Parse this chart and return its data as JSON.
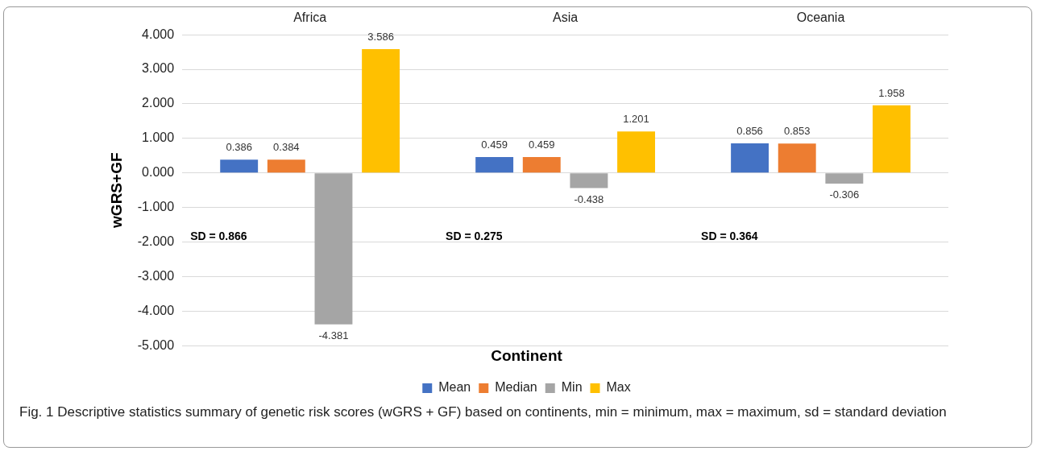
{
  "chart_data": {
    "type": "bar",
    "xlabel": "Continent",
    "ylabel": "wGRS+GF",
    "categories": [
      "Africa",
      "Asia",
      "Oceania"
    ],
    "series": [
      {
        "name": "Mean",
        "color": "#4472c4",
        "values": [
          0.386,
          0.459,
          0.856
        ]
      },
      {
        "name": "Median",
        "color": "#ed7d31",
        "values": [
          0.384,
          0.459,
          0.853
        ]
      },
      {
        "name": "Min",
        "color": "#a5a5a5",
        "values": [
          -4.381,
          -0.438,
          -0.306
        ]
      },
      {
        "name": "Max",
        "color": "#ffc000",
        "values": [
          3.586,
          1.201,
          1.958
        ]
      }
    ],
    "ylim": [
      -5,
      4
    ],
    "yticks": [
      {
        "value": -5,
        "label": "-5.000"
      },
      {
        "value": -4,
        "label": "-4.000"
      },
      {
        "value": -3,
        "label": "-3.000"
      },
      {
        "value": -2,
        "label": "-2.000"
      },
      {
        "value": -1,
        "label": "-1.000"
      },
      {
        "value": 0,
        "label": "0.000"
      },
      {
        "value": 1,
        "label": "1.000"
      },
      {
        "value": 2,
        "label": "2.000"
      },
      {
        "value": 3,
        "label": "3.000"
      },
      {
        "value": 4,
        "label": "4.000"
      }
    ],
    "grid": "y",
    "legend": "bottom",
    "data_labels": true,
    "annotations": [
      "SD = 0.866",
      "SD = 0.275",
      "SD = 0.364",
      "Fig. 1 Descriptive statistics summary of genetic risk scores (wGRS + GF) based on continents, min = minimum, max = maximum, sd = standard deviation"
    ]
  }
}
